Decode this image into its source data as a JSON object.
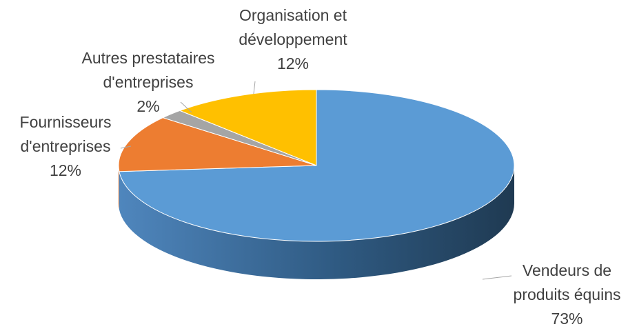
{
  "chart_data": {
    "type": "pie3d",
    "categories": [
      "Vendeurs de produits équins",
      "Fournisseurs d'entreprises",
      "Autres prestataires d'entreprises",
      "Organisation et développement"
    ],
    "values": [
      73,
      12,
      2,
      12
    ],
    "value_labels": [
      "73%",
      "12%",
      "2%",
      "12%"
    ],
    "colors": [
      "#5b9bd5",
      "#ed7d31",
      "#a5a5a5",
      "#ffc000"
    ]
  }
}
